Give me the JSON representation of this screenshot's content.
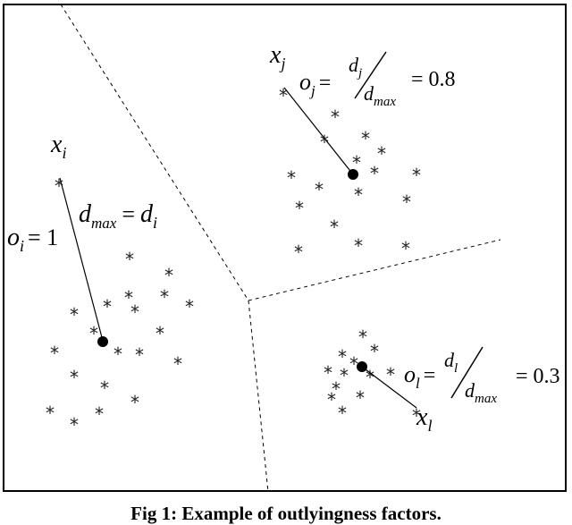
{
  "caption": "Fig 1: Example of outlyingness factors.",
  "clusters": [
    {
      "id": "i",
      "point_label": {
        "base": "x",
        "sub": "i"
      },
      "factor_label": {
        "base": "o",
        "sub": "i",
        "eq": "= 1"
      },
      "dmax_label": {
        "lhs": "d",
        "lhs_sub": "max",
        "eq": "=",
        "rhs": "d",
        "rhs_sub": "i"
      }
    },
    {
      "id": "j",
      "point_label": {
        "base": "x",
        "sub": "j"
      },
      "factor_label": {
        "base": "o",
        "sub": "j",
        "eq": "=",
        "num": "d",
        "num_sub": "j",
        "den": "d",
        "den_sub": "max",
        "value": "= 0.8"
      }
    },
    {
      "id": "l",
      "point_label": {
        "base": "x",
        "sub": "l"
      },
      "factor_label": {
        "base": "o",
        "sub": "l",
        "eq": "=",
        "num": "d",
        "num_sub": "l",
        "den": "d",
        "den_sub": "max",
        "value": "= 0.3"
      }
    }
  ],
  "star_glyph": "*"
}
